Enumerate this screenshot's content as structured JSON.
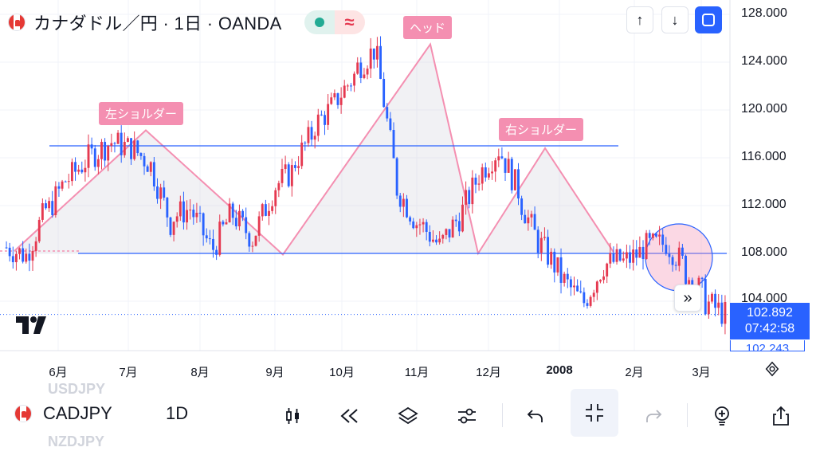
{
  "header": {
    "title": "カナダドル／円 · 1日 · OANDA",
    "pill_right_glyph": "≈"
  },
  "top_buttons": {
    "up_glyph": "↑",
    "down_glyph": "↓"
  },
  "price_axis": {
    "labels": [
      "128.000",
      "124.000",
      "120.000",
      "116.000",
      "112.000",
      "108.000",
      "104.000"
    ],
    "current_price": "102.892",
    "countdown": "07:42:58",
    "next_price": "102.243"
  },
  "time_axis": {
    "labels": [
      "6月",
      "7月",
      "8月",
      "9月",
      "10月",
      "11月",
      "12月",
      "2008",
      "2月",
      "3月"
    ]
  },
  "annotations": {
    "left_shoulder": "左ショルダー",
    "head": "ヘッド",
    "right_shoulder": "右ショルダー"
  },
  "expand_glyph": "»",
  "toolbar": {
    "symbol": "CADJPY",
    "interval": "1D",
    "ghost_above": "USDJPY",
    "ghost_below": "NZDJPY"
  },
  "colors": {
    "up": "#e53950",
    "down": "#2962ff",
    "pattern_line": "#f48fb1",
    "neckline": "#2962ff",
    "accent": "#2962ff"
  },
  "chart_data": {
    "type": "candlestick",
    "title": "カナダドル／円 · 1日 · OANDA",
    "ylim": [
      100,
      130
    ],
    "y_ticks": [
      104,
      108,
      112,
      116,
      120,
      124,
      128
    ],
    "x_categories": [
      "6月",
      "7月",
      "8月",
      "9月",
      "10月",
      "11月",
      "12月",
      "2008",
      "2月",
      "3月"
    ],
    "grid": true,
    "pattern": {
      "points": [
        {
          "label": "",
          "price": 108.2
        },
        {
          "label": "左ショルダー",
          "price": 118.3
        },
        {
          "label": "",
          "price": 107.9
        },
        {
          "label": "ヘッド",
          "price": 125.5
        },
        {
          "label": "",
          "price": 108.0
        },
        {
          "label": "右ショルダー",
          "price": 116.8
        },
        {
          "label": "",
          "price": 108.1
        }
      ]
    },
    "necklines": [
      117.0,
      108.0
    ],
    "anchors": [
      [
        108.5,
        108.5
      ],
      [
        107.8,
        108.0
      ],
      [
        112.0,
        111.5
      ],
      [
        114.5,
        114.2
      ],
      [
        116.0,
        116.0
      ],
      [
        117.2,
        117.4
      ],
      [
        116.8,
        117.0
      ],
      [
        115.5,
        115.5
      ],
      [
        110.5,
        111.0
      ],
      [
        111.8,
        111.6
      ],
      [
        108.3,
        108.2
      ],
      [
        111.5,
        111.3
      ],
      [
        109.2,
        109.3
      ],
      [
        113.3,
        113.5
      ],
      [
        115.0,
        115.5
      ],
      [
        118.3,
        118.7
      ],
      [
        120.5,
        120.7
      ],
      [
        123.0,
        123.4
      ],
      [
        125.2,
        124.8
      ],
      [
        114.0,
        113.5
      ],
      [
        110.5,
        110.8
      ],
      [
        108.8,
        108.3
      ],
      [
        111.0,
        110.8
      ],
      [
        114.5,
        114.6
      ],
      [
        116.8,
        116.7
      ],
      [
        113.0,
        112.5
      ],
      [
        108.5,
        108.8
      ],
      [
        106.2,
        106.0
      ],
      [
        104.0,
        103.5
      ],
      [
        106.8,
        107.0
      ],
      [
        107.5,
        107.2
      ],
      [
        108.2,
        108.5
      ],
      [
        108.8,
        109.2
      ],
      [
        107.0,
        106.5
      ],
      [
        104.5,
        104.0
      ],
      [
        102.9,
        102.9
      ]
    ],
    "current_price": 102.892
  }
}
